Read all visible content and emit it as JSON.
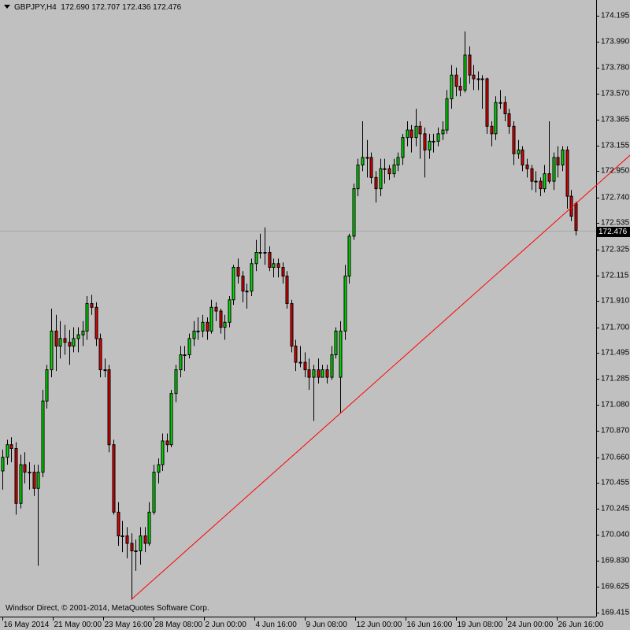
{
  "header": {
    "symbol": "GBPJPY,H4",
    "ohlc_readout": "172.690 172.707 172.436 172.476"
  },
  "copyright": "Windsor Direct, © 2001-2014, MetaQuotes Software Corp.",
  "current_price_label": "172.476",
  "colors": {
    "background": "#c0c0c0",
    "bull": "#00e000",
    "bear": "#e00000",
    "outline": "#000000",
    "trendline": "#ff0000",
    "price_line": "#a8a8a8"
  },
  "chart_data": {
    "type": "candlestick",
    "symbol": "GBPJPY",
    "timeframe": "H4",
    "grid": false,
    "ylim": [
      169.415,
      174.195
    ],
    "y_ticks": [
      "174.195",
      "173.990",
      "173.780",
      "173.570",
      "173.365",
      "173.155",
      "172.950",
      "172.740",
      "172.535",
      "172.325",
      "172.115",
      "171.910",
      "171.700",
      "171.495",
      "171.285",
      "171.080",
      "170.870",
      "170.660",
      "170.455",
      "170.245",
      "170.040",
      "169.830",
      "169.625",
      "169.415"
    ],
    "x_ticks": [
      "16 May 2014",
      "21 May 00:00",
      "23 May 16:00",
      "28 May 08:00",
      "2 Jun 00:00",
      "4 Jun 16:00",
      "9 Jun 08:00",
      "12 Jun 00:00",
      "16 Jun 16:00",
      "19 Jun 08:00",
      "24 Jun 00:00",
      "26 Jun 16:00"
    ],
    "current_price": 172.476,
    "trendline": {
      "from_bar": 29,
      "from_price": 169.52,
      "to_bar": 76,
      "to_price": 171.01,
      "extend_right": true
    },
    "candles_ohlc": [
      [
        170.55,
        170.72,
        170.4,
        170.66
      ],
      [
        170.66,
        170.8,
        170.6,
        170.76
      ],
      [
        170.76,
        170.82,
        170.62,
        170.73
      ],
      [
        170.73,
        170.78,
        170.2,
        170.29
      ],
      [
        170.29,
        170.68,
        170.25,
        170.6
      ],
      [
        170.6,
        170.7,
        170.45,
        170.54
      ],
      [
        170.54,
        170.62,
        170.4,
        170.54
      ],
      [
        170.54,
        170.6,
        170.35,
        170.41
      ],
      [
        170.41,
        170.6,
        169.79,
        170.54
      ],
      [
        170.54,
        171.2,
        170.5,
        171.11
      ],
      [
        171.11,
        171.4,
        171.05,
        171.36
      ],
      [
        171.36,
        171.85,
        171.3,
        171.67
      ],
      [
        171.67,
        171.8,
        171.35,
        171.55
      ],
      [
        171.55,
        171.75,
        171.45,
        171.61
      ],
      [
        171.61,
        171.72,
        171.48,
        171.58
      ],
      [
        171.58,
        171.68,
        171.4,
        171.55
      ],
      [
        171.55,
        171.7,
        171.5,
        171.61
      ],
      [
        171.61,
        171.7,
        171.5,
        171.64
      ],
      [
        171.64,
        171.75,
        171.55,
        171.67
      ],
      [
        171.67,
        171.95,
        171.6,
        171.89
      ],
      [
        171.89,
        171.96,
        171.8,
        171.86
      ],
      [
        171.86,
        171.9,
        171.55,
        171.61
      ],
      [
        171.61,
        171.65,
        171.3,
        171.36
      ],
      [
        171.36,
        171.45,
        171.3,
        171.36
      ],
      [
        171.36,
        171.4,
        170.7,
        170.76
      ],
      [
        170.76,
        170.8,
        170.2,
        170.22
      ],
      [
        170.22,
        170.3,
        169.95,
        170.03
      ],
      [
        170.03,
        170.15,
        169.9,
        170.03
      ],
      [
        170.03,
        170.1,
        169.85,
        169.97
      ],
      [
        169.97,
        170.05,
        169.52,
        169.91
      ],
      [
        169.91,
        170.0,
        169.75,
        169.91
      ],
      [
        169.91,
        170.1,
        169.8,
        170.03
      ],
      [
        170.03,
        170.1,
        169.9,
        169.97
      ],
      [
        169.97,
        170.3,
        169.95,
        170.22
      ],
      [
        170.22,
        170.6,
        170.2,
        170.54
      ],
      [
        170.54,
        170.65,
        170.45,
        170.6
      ],
      [
        170.6,
        170.85,
        170.55,
        170.79
      ],
      [
        170.79,
        170.85,
        170.7,
        170.76
      ],
      [
        170.76,
        171.2,
        170.74,
        171.17
      ],
      [
        171.17,
        171.4,
        171.1,
        171.36
      ],
      [
        171.36,
        171.55,
        171.3,
        171.48
      ],
      [
        171.48,
        171.55,
        171.35,
        171.48
      ],
      [
        171.48,
        171.65,
        171.45,
        171.61
      ],
      [
        171.61,
        171.75,
        171.55,
        171.67
      ],
      [
        171.67,
        171.78,
        171.6,
        171.67
      ],
      [
        171.67,
        171.8,
        171.62,
        171.74
      ],
      [
        171.74,
        171.78,
        171.6,
        171.67
      ],
      [
        171.67,
        171.92,
        171.65,
        171.86
      ],
      [
        171.86,
        171.9,
        171.75,
        171.83
      ],
      [
        171.83,
        171.85,
        171.65,
        171.7
      ],
      [
        171.7,
        171.8,
        171.6,
        171.74
      ],
      [
        171.74,
        171.95,
        171.7,
        171.92
      ],
      [
        171.92,
        172.2,
        171.88,
        172.18
      ],
      [
        172.18,
        172.25,
        172.05,
        172.11
      ],
      [
        172.11,
        172.15,
        171.9,
        171.99
      ],
      [
        171.99,
        172.05,
        171.85,
        171.99
      ],
      [
        171.99,
        172.25,
        171.95,
        172.21
      ],
      [
        172.21,
        172.4,
        172.15,
        172.3
      ],
      [
        172.3,
        172.45,
        172.25,
        172.3
      ],
      [
        172.3,
        172.5,
        172.2,
        172.3
      ],
      [
        172.3,
        172.35,
        172.15,
        172.18
      ],
      [
        172.18,
        172.25,
        172.1,
        172.21
      ],
      [
        172.21,
        172.25,
        172.1,
        172.18
      ],
      [
        172.18,
        172.22,
        172.05,
        172.11
      ],
      [
        172.11,
        172.15,
        171.85,
        171.89
      ],
      [
        171.89,
        171.92,
        171.5,
        171.55
      ],
      [
        171.55,
        171.6,
        171.35,
        171.42
      ],
      [
        171.42,
        171.55,
        171.38,
        171.42
      ],
      [
        171.42,
        171.5,
        171.3,
        171.36
      ],
      [
        171.36,
        171.45,
        171.2,
        171.3
      ],
      [
        171.3,
        171.4,
        170.95,
        171.36
      ],
      [
        171.36,
        171.45,
        171.25,
        171.3
      ],
      [
        171.3,
        171.4,
        171.3,
        171.36
      ],
      [
        171.36,
        171.4,
        171.25,
        171.3
      ],
      [
        171.3,
        171.55,
        171.28,
        171.48
      ],
      [
        171.48,
        171.7,
        171.45,
        171.67
      ],
      [
        171.3,
        171.75,
        171.01,
        171.67
      ],
      [
        171.67,
        172.2,
        171.6,
        172.11
      ],
      [
        172.11,
        172.45,
        172.05,
        172.43
      ],
      [
        172.43,
        172.85,
        172.4,
        172.81
      ],
      [
        172.81,
        173.05,
        172.75,
        173.0
      ],
      [
        173.0,
        173.35,
        172.95,
        173.06
      ],
      [
        173.06,
        173.2,
        172.9,
        173.06
      ],
      [
        173.06,
        173.1,
        172.85,
        172.9
      ],
      [
        172.9,
        172.95,
        172.7,
        172.81
      ],
      [
        172.81,
        173.05,
        172.75,
        172.97
      ],
      [
        172.97,
        173.05,
        172.85,
        172.97
      ],
      [
        172.97,
        173.0,
        172.88,
        172.93
      ],
      [
        172.93,
        173.05,
        172.9,
        173.0
      ],
      [
        173.0,
        173.1,
        172.95,
        173.06
      ],
      [
        173.06,
        173.25,
        173.0,
        173.22
      ],
      [
        173.22,
        173.35,
        173.15,
        173.28
      ],
      [
        173.28,
        173.32,
        173.1,
        173.22
      ],
      [
        173.22,
        173.45,
        173.15,
        173.31
      ],
      [
        173.31,
        173.35,
        173.05,
        173.25
      ],
      [
        173.25,
        173.3,
        172.9,
        173.12
      ],
      [
        173.12,
        173.25,
        173.05,
        173.19
      ],
      [
        173.19,
        173.25,
        173.1,
        173.19
      ],
      [
        173.19,
        173.3,
        173.15,
        173.25
      ],
      [
        173.25,
        173.35,
        173.2,
        173.28
      ],
      [
        173.28,
        173.6,
        173.25,
        173.53
      ],
      [
        173.53,
        173.8,
        173.45,
        173.72
      ],
      [
        173.72,
        173.78,
        173.55,
        173.63
      ],
      [
        173.63,
        173.7,
        173.55,
        173.6
      ],
      [
        173.6,
        174.07,
        173.58,
        173.88
      ],
      [
        173.88,
        173.95,
        173.65,
        173.72
      ],
      [
        173.72,
        173.8,
        173.6,
        173.69
      ],
      [
        173.69,
        173.75,
        173.6,
        173.69
      ],
      [
        173.69,
        173.72,
        173.45,
        173.69
      ],
      [
        173.69,
        173.7,
        173.25,
        173.31
      ],
      [
        173.31,
        173.35,
        173.15,
        173.25
      ],
      [
        173.25,
        173.55,
        173.2,
        173.5
      ],
      [
        173.5,
        173.6,
        173.45,
        173.5
      ],
      [
        173.5,
        173.55,
        173.35,
        173.41
      ],
      [
        173.41,
        173.45,
        173.25,
        173.31
      ],
      [
        173.31,
        173.35,
        173.0,
        173.09
      ],
      [
        173.09,
        173.2,
        173.05,
        173.12
      ],
      [
        173.12,
        173.15,
        172.95,
        173.0
      ],
      [
        173.0,
        173.05,
        172.9,
        172.97
      ],
      [
        172.97,
        173.0,
        172.8,
        172.87
      ],
      [
        172.87,
        172.95,
        172.78,
        172.87
      ],
      [
        172.87,
        172.9,
        172.75,
        172.81
      ],
      [
        172.81,
        173.0,
        172.78,
        172.93
      ],
      [
        172.93,
        173.35,
        172.85,
        172.87
      ],
      [
        172.87,
        173.1,
        172.8,
        173.06
      ],
      [
        173.06,
        173.15,
        172.9,
        173.0
      ],
      [
        173.0,
        173.15,
        172.95,
        173.12
      ],
      [
        173.12,
        173.15,
        172.65,
        172.75
      ],
      [
        172.75,
        172.8,
        172.55,
        172.59
      ],
      [
        172.69,
        172.707,
        172.436,
        172.476
      ]
    ]
  }
}
